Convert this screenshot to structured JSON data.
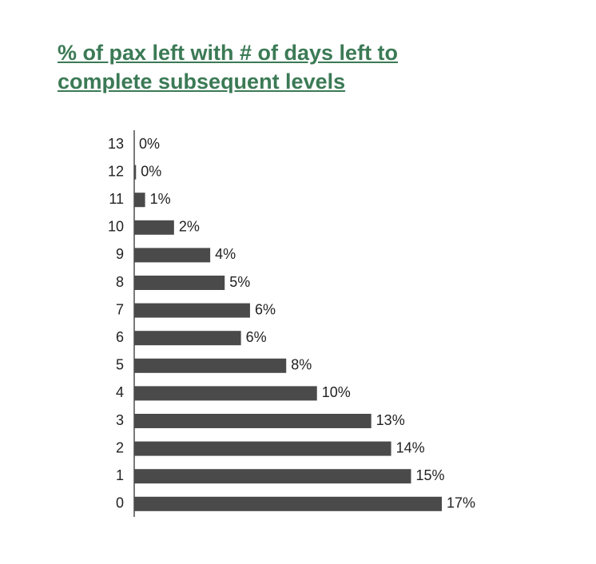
{
  "chart_data": {
    "type": "bar",
    "orientation": "horizontal",
    "title": "% of pax left with # of days left to complete subsequent levels",
    "categories": [
      "13",
      "12",
      "11",
      "10",
      "9",
      "8",
      "7",
      "6",
      "5",
      "4",
      "3",
      "2",
      "1",
      "0"
    ],
    "values": [
      0.0,
      0.1,
      0.6,
      2.2,
      4.2,
      5.0,
      6.4,
      5.9,
      8.4,
      10.1,
      13.1,
      14.2,
      15.3,
      17.0
    ],
    "value_labels": [
      "0%",
      "0%",
      "1%",
      "2%",
      "4%",
      "5%",
      "6%",
      "6%",
      "8%",
      "10%",
      "13%",
      "14%",
      "15%",
      "17%"
    ],
    "color": "#4a4a4a"
  }
}
